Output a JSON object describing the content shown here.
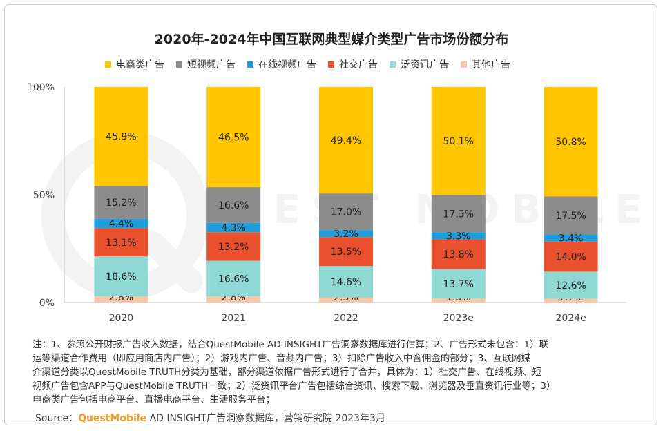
{
  "chart_data": {
    "type": "bar",
    "stacked": true,
    "title": "2020年-2024年中国互联网典型媒介类型广告市场份额分布",
    "categories": [
      "2020",
      "2021",
      "2022",
      "2023e",
      "2024e"
    ],
    "series": [
      {
        "name": "其他广告",
        "color": "#f8c6a8",
        "values": [
          2.8,
          2.8,
          2.3,
          1.8,
          1.7
        ]
      },
      {
        "name": "泛资讯广告",
        "color": "#8fd8d4",
        "values": [
          18.6,
          16.6,
          14.6,
          13.7,
          12.6
        ]
      },
      {
        "name": "社交广告",
        "color": "#e8502e",
        "values": [
          13.1,
          13.2,
          13.5,
          13.8,
          14.0
        ]
      },
      {
        "name": "在线视频广告",
        "color": "#1f9ddb",
        "values": [
          4.4,
          4.3,
          3.2,
          3.3,
          3.4
        ]
      },
      {
        "name": "短视频广告",
        "color": "#8c8c8c",
        "values": [
          15.2,
          16.6,
          17.0,
          17.3,
          17.5
        ]
      },
      {
        "name": "电商类广告",
        "color": "#ffc600",
        "values": [
          45.9,
          46.5,
          49.4,
          50.1,
          50.8
        ]
      }
    ],
    "legend_order": [
      "电商类广告",
      "短视频广告",
      "在线视频广告",
      "社交广告",
      "泛资讯广告",
      "其他广告"
    ],
    "ylim": [
      0,
      100
    ],
    "yticks": [
      "0%",
      "50%",
      "100%"
    ],
    "ytick_values": [
      0,
      50,
      100
    ],
    "value_suffix": "%",
    "legend_position": "top",
    "grid": false
  },
  "watermark": "QUEST MOBILE",
  "notes": "注：1、参照公开财报广告收入数据，结合QuestMobile AD INSIGHT广告洞察数据库进行估算；2、广告形式未包含：1）联\n运等渠道合作费用（即应用商店内广告）；2）游戏内广告、音频内广告；3）扣除广告收入中含佣金的部分；3、互联网媒\n介渠道分类以QuestMobile TRUTH分类为基础，部分渠道依据广告形式进行了合并，具体为：1）社交广告、在线视频、短\n视频广告包含APP与QuestMobile TRUTH一致；2）泛资讯平台广告包括综合资讯、搜索下载、浏览器及垂直资讯行业等；3）\n电商类广告包括电商平台、直播电商平台、生活服务平台；",
  "source": {
    "prefix": "Source：",
    "brand": "QuestMobile",
    "rest": " AD INSIGHT广告洞察数据库，营销研究院 2023年3月"
  }
}
